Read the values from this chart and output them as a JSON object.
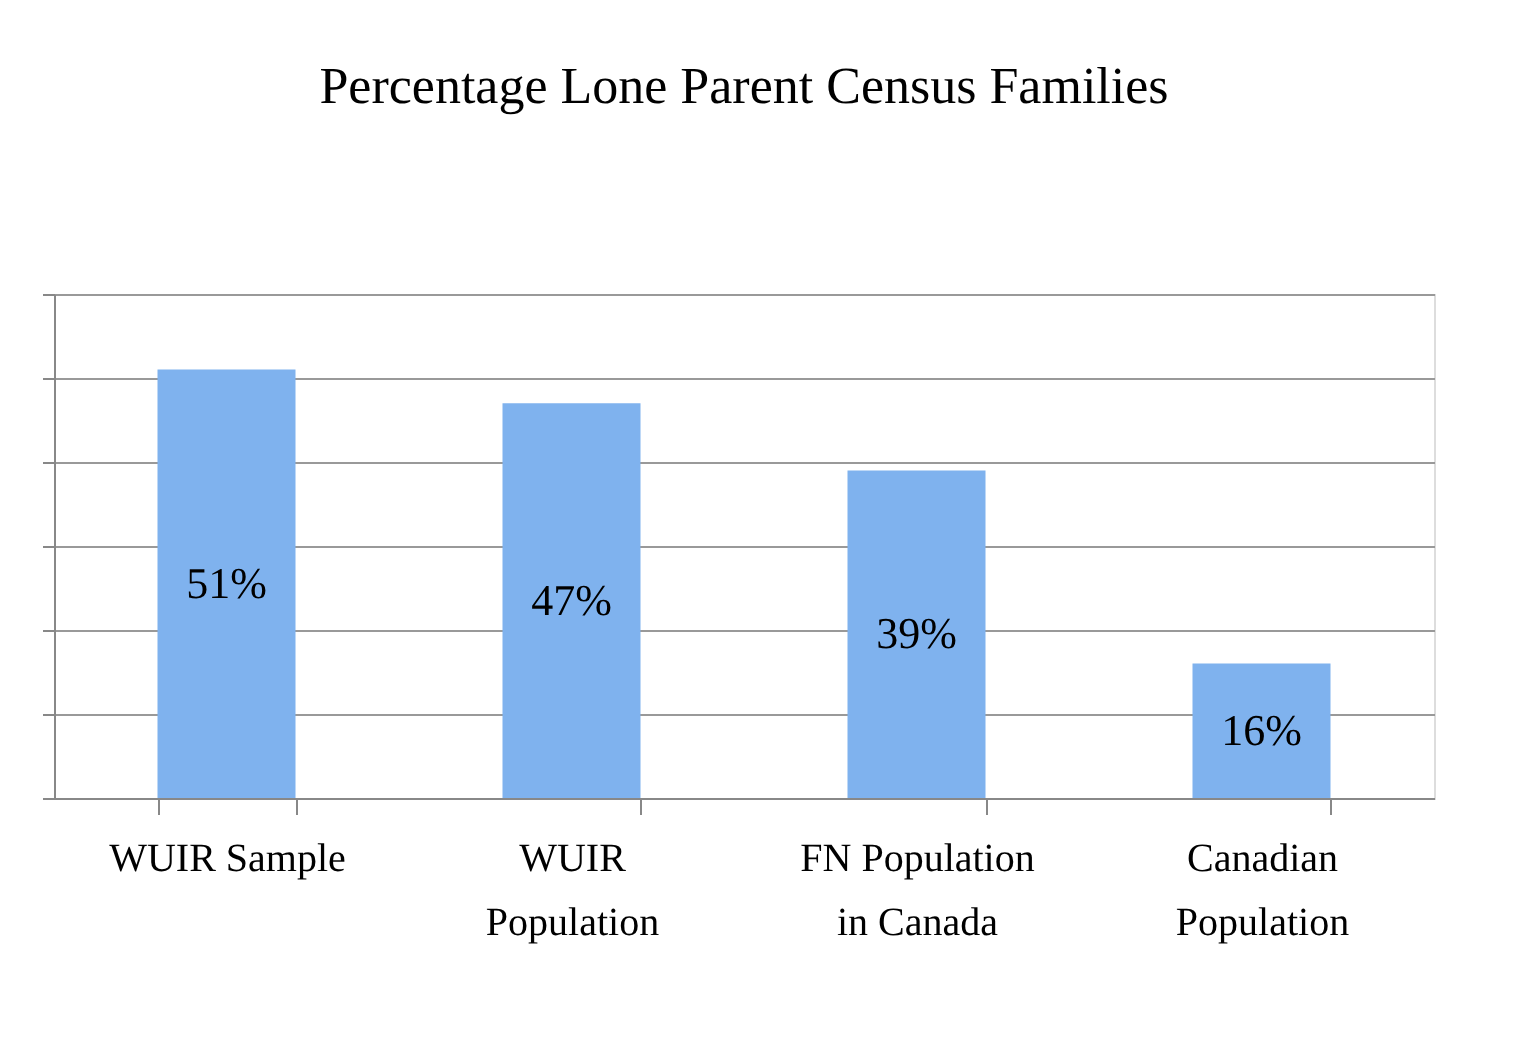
{
  "chart_data": {
    "type": "bar",
    "title": "Percentage Lone Parent Census Families",
    "categories": [
      "WUIR Sample",
      "WUIR Population",
      "FN Population in Canada",
      "Canadian Population"
    ],
    "values": [
      51,
      47,
      39,
      16
    ],
    "color": "#7fb2ee",
    "data_labels": true,
    "value_labels": [
      "51%",
      "47%",
      "39%",
      "16%"
    ],
    "ylim": [
      0,
      60
    ],
    "yticks": [
      {
        "value": 0,
        "label": null
      },
      {
        "value": 10,
        "label": null
      },
      {
        "value": 20,
        "label": null
      },
      {
        "value": 30,
        "label": null
      },
      {
        "value": 40,
        "label": null
      },
      {
        "value": 50,
        "label": null
      },
      {
        "value": 60,
        "label": null
      }
    ],
    "grid": "y",
    "tick_labels": "x"
  }
}
